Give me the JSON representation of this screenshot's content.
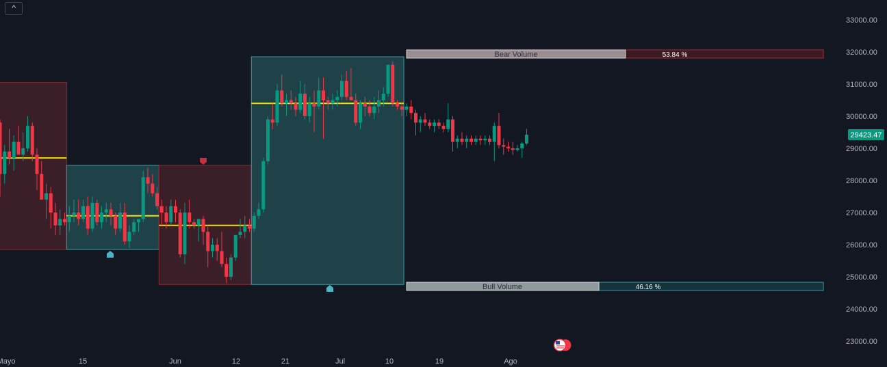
{
  "collapse_button": {
    "icon": "chevron-up-icon",
    "glyph": "^"
  },
  "price_axis": {
    "labels": [
      "33000.00",
      "32000.00",
      "31000.00",
      "30000.00",
      "29000.00",
      "28000.00",
      "27000.00",
      "26000.00",
      "25000.00",
      "24000.00",
      "23000.00"
    ]
  },
  "time_axis": {
    "labels": [
      "Mayo",
      "15",
      "Jun",
      "12",
      "21",
      "Jul",
      "10",
      "19",
      "Ago"
    ]
  },
  "last_price": {
    "label": "29423.47",
    "color": "#089981"
  },
  "colors": {
    "up": "#089981",
    "down": "#f23645",
    "level": "#f5e100",
    "bull_zone": "#1f4248",
    "bear_zone": "#3a1f28",
    "background": "#131722"
  },
  "volume_bars": {
    "bear": {
      "label": "Bear Volume",
      "percent_label": "53.84 %",
      "value": 53.84
    },
    "bull": {
      "label": "Bull Volume",
      "percent_label": "46.16 %",
      "value": 46.16
    }
  },
  "events_icon": "us-flag-economic-events-icon",
  "chart_data": {
    "type": "candlestick",
    "title": "",
    "ylim": [
      22600,
      33400
    ],
    "y_ticks": [
      33000,
      32000,
      31000,
      30000,
      29000,
      28000,
      27000,
      26000,
      25000,
      24000,
      23000
    ],
    "x_tick_labels": [
      "Mayo",
      "15",
      "Jun",
      "12",
      "21",
      "Jul",
      "10",
      "19",
      "Ago"
    ],
    "last_price": 29423.47,
    "zones": [
      {
        "type": "bear",
        "high": 31050,
        "low": 25850,
        "level": 28700
      },
      {
        "type": "bull",
        "high": 28470,
        "low": 25850,
        "level": 26900
      },
      {
        "type": "bear",
        "high": 28470,
        "low": 24760,
        "level": 26600
      },
      {
        "type": "bull",
        "high": 31850,
        "low": 24760,
        "level": 30400
      }
    ],
    "zone_markers": [
      {
        "zone": 1,
        "kind": "bull"
      },
      {
        "zone": 2,
        "kind": "bear"
      },
      {
        "zone": 3,
        "kind": "bull"
      }
    ],
    "volume_summary": {
      "bear_percent": 53.84,
      "bull_percent": 46.16
    },
    "candles": [
      [
        29800,
        29900,
        27500,
        28200
      ],
      [
        28200,
        29100,
        27900,
        28900
      ],
      [
        28900,
        29600,
        28500,
        28700
      ],
      [
        28700,
        29400,
        28300,
        29200
      ],
      [
        29200,
        29700,
        28900,
        28800
      ],
      [
        28800,
        29500,
        28600,
        29000
      ],
      [
        29000,
        30000,
        28900,
        29700
      ],
      [
        29700,
        29800,
        28600,
        28800
      ],
      [
        28800,
        29000,
        27700,
        28200
      ],
      [
        28200,
        28600,
        27400,
        27400
      ],
      [
        27400,
        27900,
        26800,
        27600
      ],
      [
        27600,
        27800,
        26500,
        27000
      ],
      [
        27000,
        27300,
        26300,
        26600
      ],
      [
        26600,
        27100,
        26300,
        26800
      ],
      [
        26800,
        27000,
        26600,
        26700
      ],
      [
        26700,
        27200,
        26400,
        26900
      ],
      [
        26900,
        27400,
        26700,
        27000
      ],
      [
        27000,
        27400,
        26600,
        26800
      ],
      [
        26800,
        27400,
        26700,
        27200
      ],
      [
        27200,
        27500,
        26300,
        26500
      ],
      [
        26500,
        27500,
        26400,
        27300
      ],
      [
        27300,
        27400,
        26600,
        26700
      ],
      [
        26700,
        27200,
        26500,
        27000
      ],
      [
        27000,
        27300,
        26700,
        27100
      ],
      [
        27100,
        27300,
        26600,
        26900
      ],
      [
        26900,
        27000,
        26300,
        26500
      ],
      [
        26500,
        27300,
        26400,
        27000
      ],
      [
        27000,
        27300,
        26000,
        26100
      ],
      [
        26100,
        26600,
        25900,
        26400
      ],
      [
        26400,
        26800,
        26300,
        26700
      ],
      [
        26700,
        26800,
        26400,
        26800
      ],
      [
        26800,
        28300,
        26700,
        28100
      ],
      [
        28100,
        28400,
        27600,
        27900
      ],
      [
        27900,
        28200,
        27500,
        27600
      ],
      [
        27600,
        27800,
        27100,
        27200
      ],
      [
        27200,
        27400,
        26600,
        27000
      ],
      [
        27000,
        27200,
        26500,
        26700
      ],
      [
        26700,
        27400,
        26600,
        27200
      ],
      [
        27200,
        27400,
        26700,
        27000
      ],
      [
        27000,
        27100,
        25600,
        25700
      ],
      [
        25700,
        27300,
        25400,
        27000
      ],
      [
        27000,
        27400,
        26500,
        26700
      ],
      [
        26700,
        26800,
        26500,
        26600
      ],
      [
        26600,
        26800,
        26100,
        26800
      ],
      [
        26800,
        26900,
        26000,
        26400
      ],
      [
        26400,
        26600,
        25300,
        25800
      ],
      [
        25800,
        26200,
        25600,
        26000
      ],
      [
        26000,
        26200,
        25500,
        25800
      ],
      [
        25800,
        26400,
        25300,
        25400
      ],
      [
        25400,
        25600,
        24800,
        25000
      ],
      [
        25000,
        25700,
        24900,
        25600
      ],
      [
        25600,
        26300,
        25500,
        26300
      ],
      [
        26300,
        26800,
        26200,
        26400
      ],
      [
        26400,
        26900,
        26200,
        26600
      ],
      [
        26600,
        26800,
        26400,
        26500
      ],
      [
        26500,
        27000,
        26400,
        26900
      ],
      [
        26900,
        27300,
        26800,
        27100
      ],
      [
        27100,
        28700,
        27000,
        28600
      ],
      [
        28600,
        30000,
        28500,
        29900
      ],
      [
        29900,
        30400,
        29600,
        29800
      ],
      [
        29800,
        31000,
        29700,
        30800
      ],
      [
        30800,
        31300,
        30300,
        30400
      ],
      [
        30400,
        30700,
        30000,
        30500
      ],
      [
        30500,
        30800,
        30200,
        30400
      ],
      [
        30400,
        30600,
        30000,
        30200
      ],
      [
        30200,
        31100,
        30100,
        30700
      ],
      [
        30700,
        31000,
        29900,
        30000
      ],
      [
        30000,
        30600,
        29800,
        30400
      ],
      [
        30400,
        30800,
        29500,
        30300
      ],
      [
        30300,
        31200,
        30200,
        30800
      ],
      [
        30800,
        31200,
        29300,
        30500
      ],
      [
        30500,
        30600,
        30200,
        30400
      ],
      [
        30400,
        30700,
        30200,
        30500
      ],
      [
        30500,
        30800,
        30300,
        30600
      ],
      [
        30600,
        31300,
        30500,
        31100
      ],
      [
        31100,
        31400,
        30500,
        30600
      ],
      [
        30600,
        31500,
        30500,
        30500
      ],
      [
        30500,
        30700,
        29700,
        29800
      ],
      [
        29800,
        30500,
        29600,
        30400
      ],
      [
        30400,
        30600,
        30000,
        30300
      ],
      [
        30300,
        30500,
        30000,
        30100
      ],
      [
        30100,
        30600,
        29900,
        30300
      ],
      [
        30300,
        30800,
        30100,
        30500
      ],
      [
        30500,
        30900,
        30300,
        30700
      ],
      [
        30700,
        31600,
        30600,
        31600
      ],
      [
        31600,
        31700,
        30300,
        30400
      ],
      [
        30400,
        30500,
        30200,
        30300
      ],
      [
        30300,
        30400,
        30000,
        30200
      ],
      [
        30200,
        30400,
        30000,
        30300
      ],
      [
        30300,
        30500,
        29900,
        30100
      ],
      [
        30100,
        30200,
        29400,
        29800
      ],
      [
        29800,
        30000,
        29500,
        29900
      ],
      [
        29900,
        30100,
        29700,
        29800
      ],
      [
        29800,
        29900,
        29600,
        29700
      ],
      [
        29700,
        29900,
        29500,
        29800
      ],
      [
        29800,
        29900,
        29600,
        29700
      ],
      [
        29700,
        29800,
        29500,
        29600
      ],
      [
        29600,
        30400,
        29500,
        29900
      ],
      [
        29900,
        30000,
        28900,
        29200
      ],
      [
        29200,
        29400,
        29000,
        29300
      ],
      [
        29300,
        29500,
        29100,
        29200
      ],
      [
        29200,
        29400,
        29000,
        29300
      ],
      [
        29300,
        29400,
        29100,
        29200
      ],
      [
        29200,
        29400,
        29100,
        29300
      ],
      [
        29300,
        29400,
        29100,
        29250
      ],
      [
        29250,
        29400,
        29100,
        29300
      ],
      [
        29300,
        29400,
        29100,
        29200
      ],
      [
        29200,
        29800,
        28600,
        29700
      ],
      [
        29700,
        30100,
        29000,
        29100
      ],
      [
        29100,
        29300,
        28800,
        29050
      ],
      [
        29050,
        29200,
        28900,
        29000
      ],
      [
        29000,
        29200,
        28800,
        28950
      ],
      [
        28950,
        29100,
        28900,
        29000
      ],
      [
        29000,
        29200,
        28700,
        29150
      ],
      [
        29150,
        29600,
        29100,
        29423
      ]
    ]
  }
}
